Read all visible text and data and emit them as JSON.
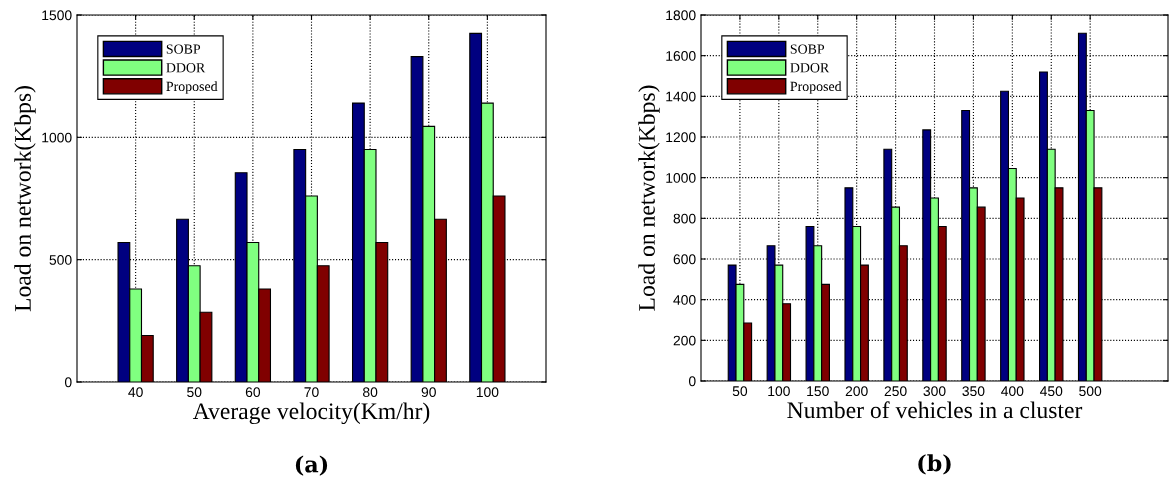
{
  "chart_data": [
    {
      "type": "bar",
      "xlabel": "Average velocity(Km/hr)",
      "ylabel": "Load on network(Kbps)",
      "categories": [
        "40",
        "50",
        "60",
        "70",
        "80",
        "90",
        "100"
      ],
      "series": [
        {
          "name": "SOBP",
          "color": "#000080",
          "values": [
            570,
            665,
            855,
            950,
            1140,
            1330,
            1425
          ]
        },
        {
          "name": "DDOR",
          "color": "#80ff80",
          "values": [
            380,
            475,
            570,
            760,
            950,
            1045,
            1140
          ]
        },
        {
          "name": "Proposed",
          "color": "#800000",
          "values": [
            190,
            285,
            380,
            475,
            570,
            665,
            760
          ]
        }
      ],
      "ylim": [
        0,
        1500
      ],
      "yticks": [
        0,
        500,
        1000,
        1500
      ],
      "grid": true,
      "legend": "top left",
      "annotations": [
        "(a)"
      ]
    },
    {
      "type": "bar",
      "xlabel": "Number of vehicles in a cluster",
      "ylabel": "Load on network(Kbps)",
      "categories": [
        "50",
        "100",
        "150",
        "200",
        "250",
        "300",
        "350",
        "400",
        "450",
        "500"
      ],
      "series": [
        {
          "name": "SOBP",
          "color": "#000080",
          "values": [
            570,
            665,
            760,
            950,
            1140,
            1235,
            1330,
            1425,
            1520,
            1710
          ]
        },
        {
          "name": "DDOR",
          "color": "#80ff80",
          "values": [
            475,
            570,
            665,
            760,
            855,
            900,
            950,
            1045,
            1140,
            1330
          ]
        },
        {
          "name": "Proposed",
          "color": "#800000",
          "values": [
            285,
            380,
            475,
            570,
            665,
            760,
            855,
            900,
            950,
            950
          ]
        }
      ],
      "ylim": [
        0,
        1800
      ],
      "yticks": [
        0,
        200,
        400,
        600,
        800,
        1000,
        1200,
        1400,
        1600,
        1800
      ],
      "grid": true,
      "legend": "top left",
      "annotations": [
        "(b)"
      ]
    }
  ]
}
